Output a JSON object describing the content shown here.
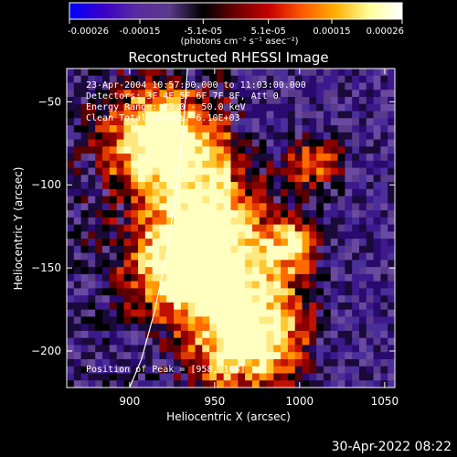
{
  "colorbar": {
    "tick_labels": [
      "-0.00026",
      "-0.00015",
      "-5.1e-05",
      "5.1e-05",
      "0.00015",
      "0.00026"
    ],
    "tick_values": [
      -0.00026,
      -0.00015,
      -5.1e-05,
      5.1e-05,
      0.00015,
      0.00026
    ],
    "range": [
      -0.00026,
      0.00026
    ],
    "units_label": "(photons cm⁻² s⁻¹ asec⁻²)",
    "colors": [
      "#0000ff",
      "#3a00c8",
      "#5a2aa0",
      "#5a3a8a",
      "#000000",
      "#6b0000",
      "#c80000",
      "#ff5a00",
      "#ffb000",
      "#ffff9a",
      "#ffffff"
    ]
  },
  "chart_data": {
    "type": "heatmap",
    "title": "Reconstructed RHESSI Image",
    "xlabel": "Heliocentric X (arcsec)",
    "ylabel": "Heliocentric Y (arcsec)",
    "xlim": [
      863,
      1056
    ],
    "ylim": [
      -222,
      -30
    ],
    "x_ticks": [
      900,
      950,
      1000,
      1050
    ],
    "x_tick_labels": [
      "900",
      "950",
      "1000",
      "1050"
    ],
    "y_ticks": [
      -50,
      -100,
      -150,
      -200
    ],
    "y_tick_labels": [
      "−50",
      "−100",
      "−150",
      "−200"
    ],
    "annotations": [
      "23-Apr-2004 10:57:00.000 to 11:03:00.000",
      "Detectors: 3F 4F 5F 6F 7F 8F, Att 0",
      "Energy Range: 25.0 - 50.0 keV",
      "Clean     Total counts: 6.10E+03"
    ],
    "peak_label": "Position of Peak = [958,-168]",
    "peak": [
      958,
      -168
    ],
    "limb_curve": [
      [
        934,
        -30
      ],
      [
        932,
        -60
      ],
      [
        928,
        -100
      ],
      [
        922,
        -140
      ],
      [
        915,
        -175
      ],
      [
        907,
        -205
      ],
      [
        900,
        -222
      ]
    ]
  },
  "timestamp": "30-Apr-2022 08:22"
}
